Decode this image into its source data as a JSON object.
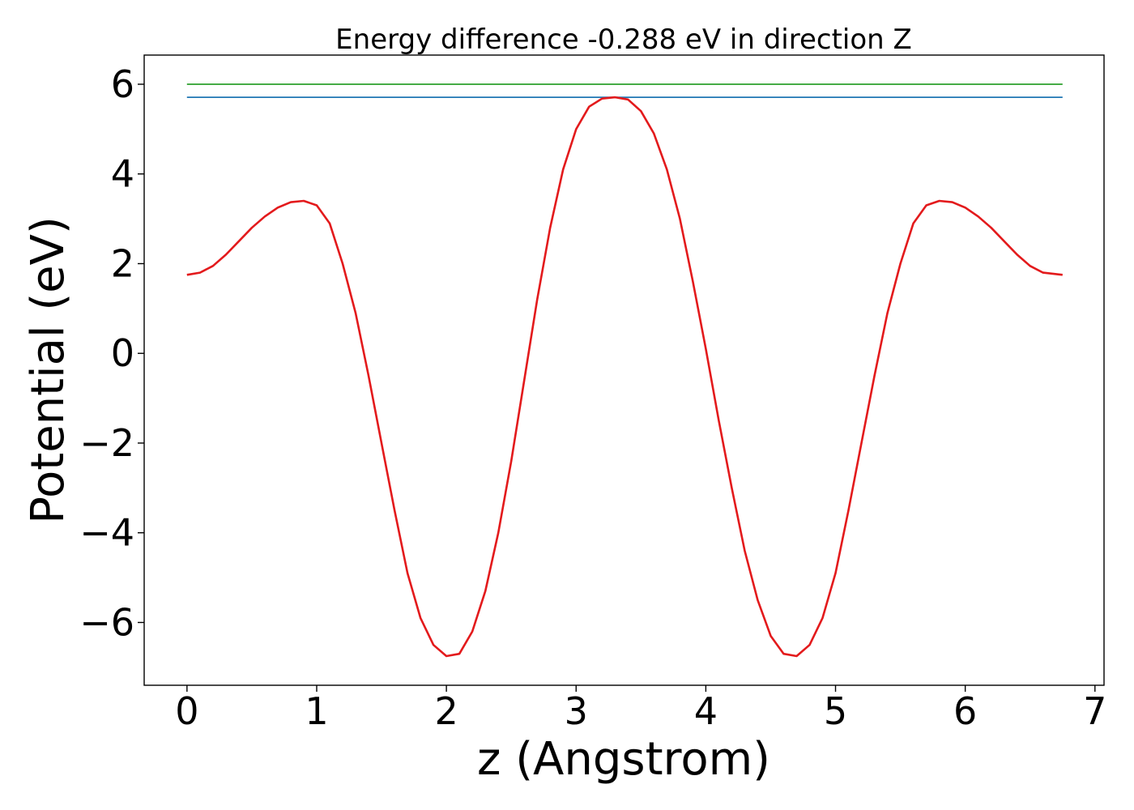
{
  "chart_data": {
    "type": "line",
    "title": "Energy difference -0.288 eV in direction Z",
    "xlabel": "z (Angstrom)",
    "ylabel": "Potential (eV)",
    "xlim": [
      -0.33,
      7.07
    ],
    "ylim": [
      -7.4,
      6.65
    ],
    "xticks": [
      0,
      1,
      2,
      3,
      4,
      5,
      6,
      7
    ],
    "xtick_labels": [
      "0",
      "1",
      "2",
      "3",
      "4",
      "5",
      "6",
      "7"
    ],
    "yticks": [
      -6,
      -4,
      -2,
      0,
      2,
      4,
      6
    ],
    "ytick_labels": [
      "−6",
      "−4",
      "−2",
      "0",
      "2",
      "4",
      "6"
    ],
    "grid": false,
    "series": [
      {
        "color": "#2ca02c",
        "x": [
          0,
          6.75
        ],
        "y": [
          6.0,
          6.0
        ]
      },
      {
        "color": "#1f77b4",
        "x": [
          0,
          6.75
        ],
        "y": [
          5.71,
          5.71
        ]
      },
      {
        "color": "#e31a1c",
        "x": [
          0,
          0.1,
          0.2,
          0.3,
          0.4,
          0.5,
          0.6,
          0.7,
          0.8,
          0.9,
          1.0,
          1.1,
          1.2,
          1.3,
          1.4,
          1.5,
          1.6,
          1.7,
          1.8,
          1.9,
          2.0,
          2.1,
          2.2,
          2.3,
          2.4,
          2.5,
          2.6,
          2.7,
          2.8,
          2.9,
          3.0,
          3.1,
          3.2,
          3.3,
          3.4,
          3.5,
          3.6,
          3.7,
          3.8,
          3.9,
          4.0,
          4.1,
          4.2,
          4.3,
          4.4,
          4.5,
          4.6,
          4.7,
          4.8,
          4.9,
          5.0,
          5.1,
          5.2,
          5.3,
          5.4,
          5.5,
          5.6,
          5.7,
          5.8,
          5.9,
          6.0,
          6.1,
          6.2,
          6.3,
          6.4,
          6.5,
          6.6,
          6.75
        ],
        "y": [
          1.75,
          1.8,
          1.95,
          2.2,
          2.5,
          2.8,
          3.05,
          3.25,
          3.37,
          3.4,
          3.3,
          2.9,
          2.0,
          0.9,
          -0.5,
          -2.0,
          -3.5,
          -4.9,
          -5.9,
          -6.5,
          -6.75,
          -6.7,
          -6.2,
          -5.3,
          -4.0,
          -2.4,
          -0.6,
          1.2,
          2.8,
          4.1,
          5.0,
          5.5,
          5.68,
          5.71,
          5.66,
          5.4,
          4.9,
          4.1,
          3.0,
          1.6,
          0.1,
          -1.5,
          -3.0,
          -4.4,
          -5.5,
          -6.3,
          -6.7,
          -6.75,
          -6.5,
          -5.9,
          -4.9,
          -3.5,
          -2.0,
          -0.5,
          0.9,
          2.0,
          2.9,
          3.3,
          3.4,
          3.37,
          3.25,
          3.05,
          2.8,
          2.5,
          2.2,
          1.95,
          1.8,
          1.75
        ]
      }
    ]
  }
}
